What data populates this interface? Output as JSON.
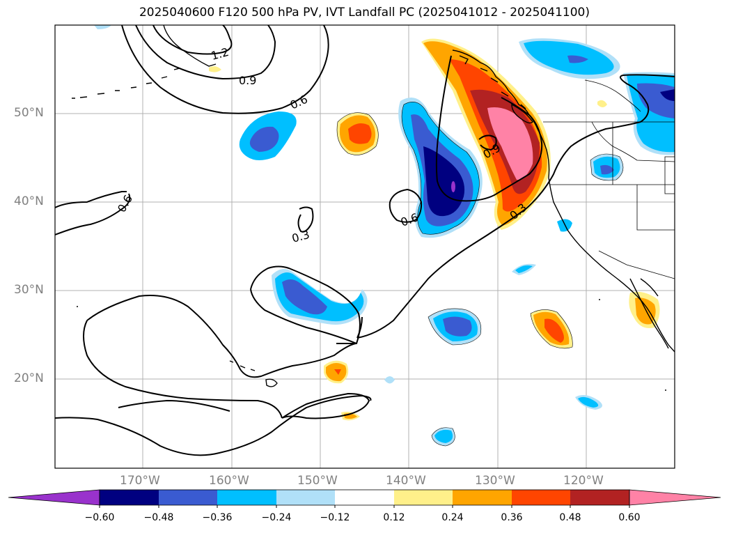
{
  "title": "2025040600 F120 500 hPa PV, IVT Landfall PC (2025041012 - 2025041100)",
  "lat_labels": [
    "50°N",
    "40°N",
    "30°N",
    "20°N"
  ],
  "lon_labels": [
    "170°W",
    "160°W",
    "150°W",
    "140°W",
    "130°W",
    "120°W"
  ],
  "contour_labels": [
    "1.2",
    "0.9",
    "0.6",
    "0.6",
    "0.3",
    "0.6",
    "0.9",
    "0.3"
  ],
  "colorbar": {
    "ticks": [
      "−0.60",
      "−0.48",
      "−0.36",
      "−0.24",
      "−0.12",
      "0.12",
      "0.24",
      "0.36",
      "0.48",
      "0.60"
    ],
    "colors": [
      "#9932cc",
      "#000080",
      "#3a5bd1",
      "#00bfff",
      "#b0e0f8",
      "#ffffff",
      "#fff08a",
      "#ffa500",
      "#ff4500",
      "#b22222",
      "#ff82a6"
    ]
  }
}
